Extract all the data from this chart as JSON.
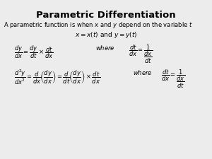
{
  "title": "Parametric Differentiation",
  "bg_color": "#ececec",
  "text_color": "#000000",
  "title_fontsize": 9.5,
  "body_fontsize": 6.0,
  "math_fontsize": 6.0
}
